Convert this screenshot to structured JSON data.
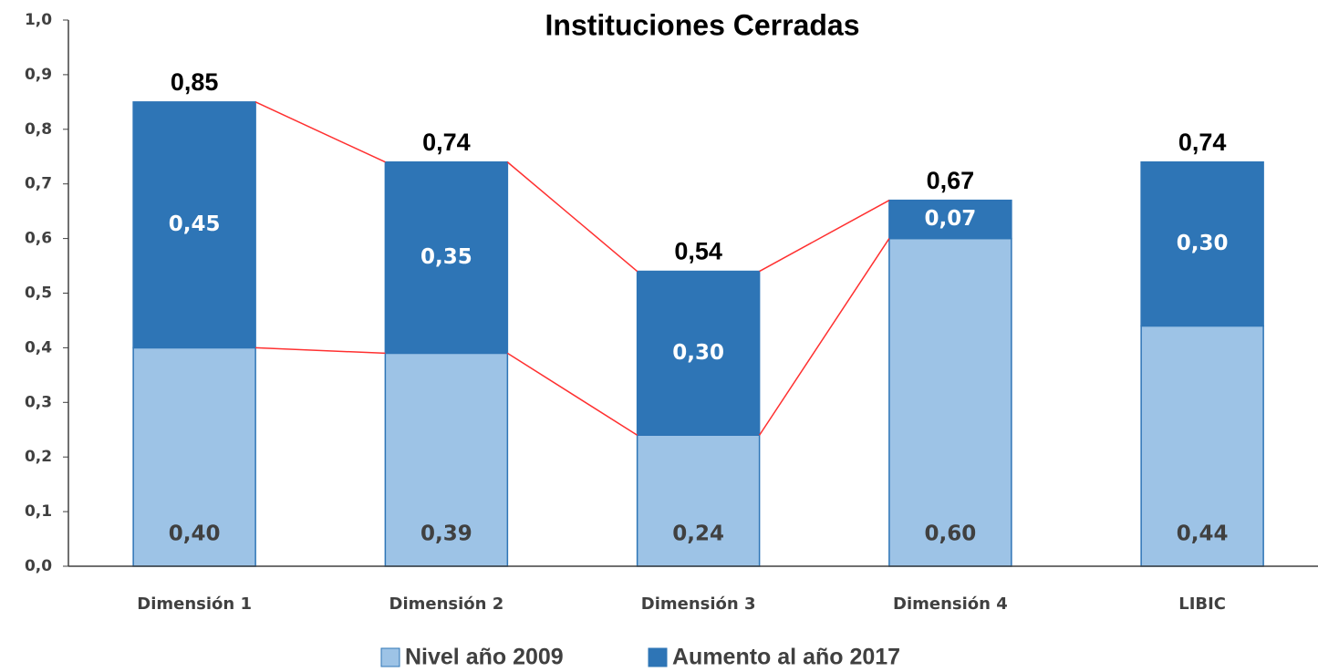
{
  "chart_data": {
    "type": "stacked_bar",
    "title": "Instituciones Cerradas",
    "categories": [
      "Dimensión 1",
      "Dimensión 2",
      "Dimensión 3",
      "Dimensión 4",
      "LIBIC"
    ],
    "series": [
      {
        "name": "Nivel año 2009",
        "color": "#9dc3e6",
        "values": [
          0.4,
          0.39,
          0.24,
          0.6,
          0.44
        ],
        "value_labels": [
          "0,40",
          "0,39",
          "0,24",
          "0,60",
          "0,44"
        ]
      },
      {
        "name": "Aumento al año 2017",
        "color": "#2e75b6",
        "values": [
          0.45,
          0.35,
          0.3,
          0.07,
          0.3
        ],
        "value_labels": [
          "0,45",
          "0,35",
          "0,30",
          "0,07",
          "0,30"
        ]
      }
    ],
    "totals": [
      0.85,
      0.74,
      0.54,
      0.67,
      0.74
    ],
    "total_labels": [
      "0,85",
      "0,74",
      "0,54",
      "0,67",
      "0,74"
    ],
    "ylim": [
      0,
      1
    ],
    "yticks": [
      {
        "value": 0,
        "label": "0,0"
      },
      {
        "value": 0.1,
        "label": "0,1"
      },
      {
        "value": 0.2,
        "label": "0,2"
      },
      {
        "value": 0.3,
        "label": "0,3"
      },
      {
        "value": 0.4,
        "label": "0,4"
      },
      {
        "value": 0.5,
        "label": "0,5"
      },
      {
        "value": 0.6,
        "label": "0,6"
      },
      {
        "value": 0.7,
        "label": "0,7"
      },
      {
        "value": 0.8,
        "label": "0,8"
      },
      {
        "value": 0.9,
        "label": "0,9"
      },
      {
        "value": 1,
        "label": "1,0"
      }
    ],
    "legend": "bottom"
  }
}
